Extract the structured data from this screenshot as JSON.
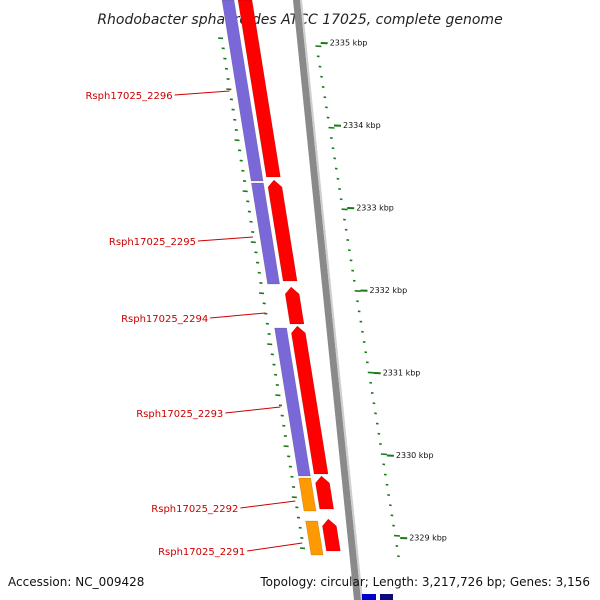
{
  "title": "Rhodobacter sphaeroides ATCC 17025, complete genome",
  "footer": {
    "accession": "Accession: NC_009428",
    "topology": "Topology: circular; Length: 3,217,726 bp; Genes: 3,156"
  },
  "colors": {
    "cds": "#ff0000",
    "blast_hit": "#7b68d8",
    "orange_feature": "#ff9900",
    "ticks": "#1a7a1a",
    "backbone": "#8a8a8a",
    "gene_label": "#cc0000",
    "bottom_feature": "#0000cc"
  },
  "ticks": [
    {
      "label": "2335 kbp",
      "kbp": 2335
    },
    {
      "label": "2334 kbp",
      "kbp": 2334
    },
    {
      "label": "2333 kbp",
      "kbp": 2333
    },
    {
      "label": "2332 kbp",
      "kbp": 2332
    },
    {
      "label": "2331 kbp",
      "kbp": 2331
    },
    {
      "label": "2330 kbp",
      "kbp": 2330
    },
    {
      "label": "2329 kbp",
      "kbp": 2329
    }
  ],
  "genes": [
    {
      "label": "Rsph17025_2296"
    },
    {
      "label": "Rsph17025_2295"
    },
    {
      "label": "Rsph17025_2294"
    },
    {
      "label": "Rsph17025_2293"
    },
    {
      "label": "Rsph17025_2292"
    },
    {
      "label": "Rsph17025_2291"
    }
  ]
}
